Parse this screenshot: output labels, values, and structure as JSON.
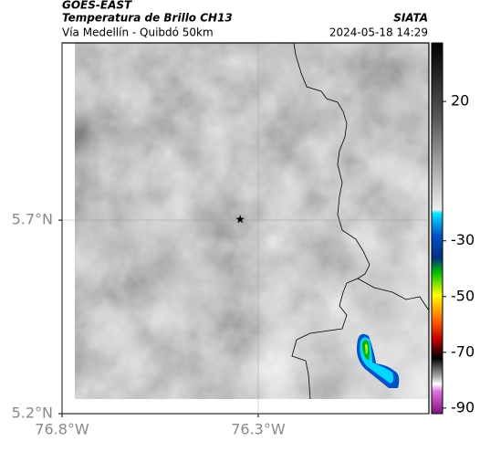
{
  "header": {
    "title": "GOES-EAST",
    "subtitle": "Temperatura de Brillo CH13",
    "region": "Vía Medellín - Quibdó 50km",
    "source": "SIATA",
    "timestamp": "2024-05-18 14:29"
  },
  "map": {
    "xlim": [
      -76.8,
      -75.865
    ],
    "ylim": [
      5.2,
      6.158
    ],
    "xticks": [
      {
        "value": -76.8,
        "label": "76.8°W"
      },
      {
        "value": -76.3,
        "label": "76.3°W"
      }
    ],
    "yticks": [
      {
        "value": 5.2,
        "label": "5.2°N"
      },
      {
        "value": 5.7,
        "label": "5.7°N"
      }
    ],
    "marker": {
      "lon": -76.346,
      "lat": 5.702
    },
    "grid": true
  },
  "colorbar": {
    "clim": [
      41,
      -92
    ],
    "ticks": [
      20,
      -30,
      -50,
      -70,
      -90
    ]
  }
}
